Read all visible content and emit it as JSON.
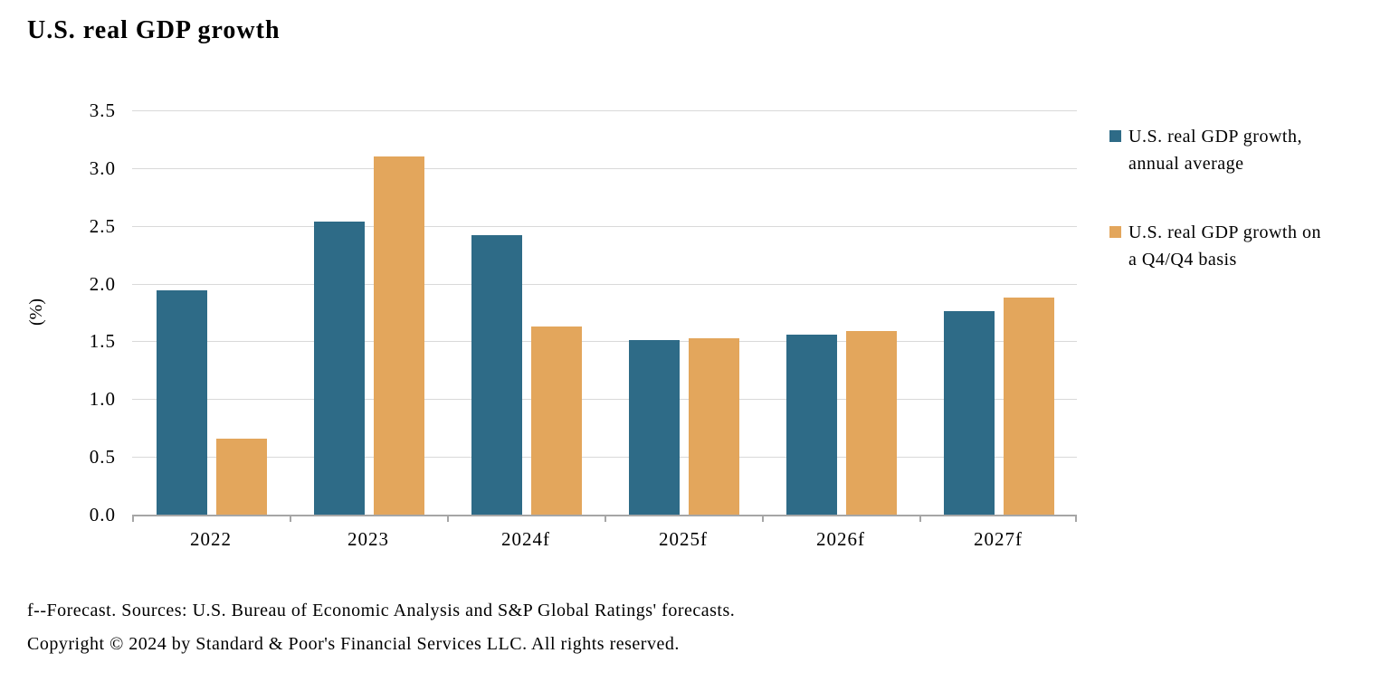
{
  "title": "U.S. real GDP growth",
  "chart_data": {
    "type": "bar",
    "title": "U.S. real GDP growth",
    "categories": [
      "2022",
      "2023",
      "2024f",
      "2025f",
      "2026f",
      "2027f"
    ],
    "series": [
      {
        "name": "U.S. real GDP growth, annual average",
        "color": "#2E6B87",
        "values": [
          1.94,
          2.54,
          2.42,
          1.51,
          1.56,
          1.76
        ]
      },
      {
        "name": "U.S. real GDP growth on a Q4/Q4 basis",
        "color": "#E3A65C",
        "values": [
          0.66,
          3.1,
          1.63,
          1.53,
          1.59,
          1.88
        ]
      }
    ],
    "xlabel": "",
    "ylabel": "(%)",
    "ylim": [
      0,
      3.5
    ],
    "ytick_step": 0.5,
    "yticks": [
      "3.5",
      "3.0",
      "2.5",
      "2.0",
      "1.5",
      "1.0",
      "0.5",
      "0.0"
    ],
    "grid": "horizontal",
    "gridline_color": "#D9D9D9",
    "axis_color": "#A6A6A6",
    "legend_position": "right"
  },
  "legend": {
    "entries": [
      {
        "label": "U.S. real GDP growth, annual average",
        "display": "U.S. real GDP growth,\nannual average",
        "color": "#2E6B87"
      },
      {
        "label": "U.S. real GDP growth on a Q4/Q4 basis",
        "display": "U.S. real GDP growth on\na Q4/Q4 basis",
        "color": "#E3A65C"
      }
    ]
  },
  "footnotes": [
    "f--Forecast. Sources: U.S. Bureau of Economic Analysis and S&P Global Ratings' forecasts.",
    "Copyright © 2024 by Standard & Poor's Financial Services LLC. All rights reserved."
  ]
}
